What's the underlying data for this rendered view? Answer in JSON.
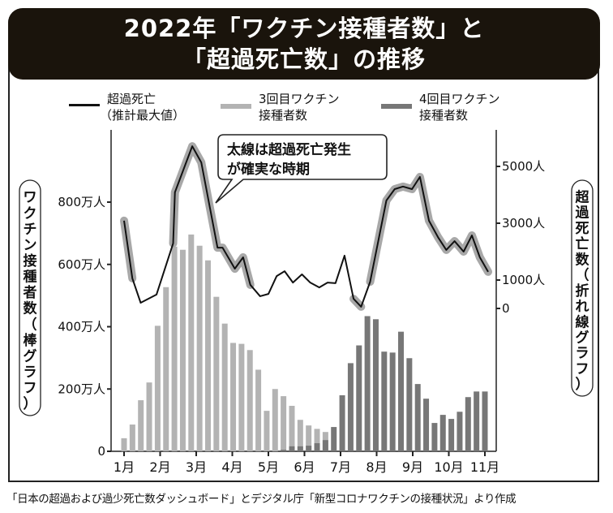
{
  "title": {
    "line1": "2022年「ワクチン接種者数」と",
    "line2": "「超過死亡数」の推移"
  },
  "legend": [
    {
      "label_line1": "超過死亡",
      "label_line2": "（推計最大値）",
      "color": "#111111",
      "kind": "line"
    },
    {
      "label_line1": "3回目ワクチン",
      "label_line2": "接種者数",
      "color": "#b3b3b3",
      "kind": "bar"
    },
    {
      "label_line1": "4回目ワクチン",
      "label_line2": "接種者数",
      "color": "#777777",
      "kind": "bar"
    }
  ],
  "callout": {
    "line1": "太線は超過死亡発生",
    "line2": "が確実な時期"
  },
  "left_axis": {
    "title": "ワクチン接種者数（棒グラフ）",
    "ticks": [
      {
        "value": 0,
        "label": "0"
      },
      {
        "value": 200,
        "label": "200万人"
      },
      {
        "value": 400,
        "label": "400万人"
      },
      {
        "value": 600,
        "label": "600万人"
      },
      {
        "value": 800,
        "label": "800万人"
      }
    ]
  },
  "right_axis": {
    "title": "超過死亡数（折れ線グラフ）",
    "ticks": [
      {
        "value": 0,
        "label": "0"
      },
      {
        "value": 1000,
        "label": "1000人"
      },
      {
        "value": 3000,
        "label": "3000人"
      },
      {
        "value": 5000,
        "label": "5000人"
      }
    ]
  },
  "source": "「日本の超過および過少死亡数ダッシュボード」とデジタル庁「新型コロナワクチンの接種状況」より作成",
  "colors": {
    "title_bg": "#1a140c",
    "dose3": "#b3b3b3",
    "dose4": "#777777",
    "line": "#111111",
    "line_highlight": "#a8a8a8"
  },
  "chart_data": {
    "type": "bar+line",
    "title": "2022年「ワクチン接種者数」と「超過死亡数」の推移",
    "xlabel": "",
    "x_tick_labels": [
      "1月",
      "2月",
      "3月",
      "4月",
      "5月",
      "6月",
      "7月",
      "8月",
      "9月",
      "10月",
      "11月"
    ],
    "bar_unit": "万人",
    "line_unit": "人",
    "left_ylim": [
      0,
      1000
    ],
    "right_ylim": [
      0,
      6000
    ],
    "weekly_bars": {
      "dose3": [
        42,
        86,
        164,
        221,
        403,
        527,
        657,
        647,
        696,
        660,
        613,
        496,
        410,
        348,
        345,
        325,
        262,
        130,
        200,
        177,
        146,
        101,
        83,
        72,
        62,
        0,
        0,
        0,
        0,
        0,
        0,
        0,
        0,
        0,
        0,
        0,
        0,
        0,
        0,
        0,
        0,
        0,
        0,
        0
      ],
      "dose4": [
        0,
        0,
        0,
        0,
        0,
        0,
        0,
        0,
        0,
        0,
        0,
        0,
        0,
        0,
        0,
        0,
        0,
        0,
        0,
        5,
        16,
        16,
        18,
        26,
        36,
        78,
        180,
        283,
        340,
        434,
        424,
        320,
        317,
        384,
        299,
        216,
        169,
        91,
        117,
        104,
        127,
        174,
        192,
        192
      ]
    },
    "excess_deaths_line": {
      "points": [
        [
          0.0,
          3090
        ],
        [
          0.23,
          1060
        ],
        [
          0.46,
          200
        ],
        [
          0.9,
          490
        ],
        [
          1.36,
          2290
        ],
        [
          1.41,
          4090
        ],
        [
          1.89,
          5710
        ],
        [
          2.14,
          5140
        ],
        [
          2.59,
          2140
        ],
        [
          2.73,
          2140
        ],
        [
          3.07,
          1400
        ],
        [
          3.3,
          1800
        ],
        [
          3.5,
          830
        ],
        [
          3.77,
          430
        ],
        [
          4.0,
          510
        ],
        [
          4.23,
          1140
        ],
        [
          4.45,
          1310
        ],
        [
          4.68,
          910
        ],
        [
          4.93,
          1200
        ],
        [
          5.16,
          910
        ],
        [
          5.41,
          740
        ],
        [
          5.64,
          910
        ],
        [
          5.86,
          890
        ],
        [
          6.11,
          1860
        ],
        [
          6.36,
          340
        ],
        [
          6.57,
          60
        ],
        [
          6.82,
          940
        ],
        [
          7.27,
          3800
        ],
        [
          7.5,
          4200
        ],
        [
          7.73,
          4290
        ],
        [
          7.98,
          4200
        ],
        [
          8.2,
          4630
        ],
        [
          8.45,
          3090
        ],
        [
          8.7,
          2510
        ],
        [
          8.93,
          2060
        ],
        [
          9.16,
          2370
        ],
        [
          9.41,
          2000
        ],
        [
          9.64,
          2570
        ],
        [
          9.86,
          1800
        ],
        [
          10.09,
          1290
        ]
      ],
      "x_unit": "months since Jan start-tick",
      "highlight_ranges": [
        [
          0.0,
          0.23
        ],
        [
          1.36,
          2.73
        ],
        [
          2.73,
          3.3
        ],
        [
          6.11,
          6.11
        ],
        [
          6.82,
          10.09
        ]
      ]
    },
    "legend": [
      "超過死亡（推計最大値）",
      "3回目ワクチン接種者数",
      "4回目ワクチン接種者数"
    ],
    "legend_position": "top"
  }
}
